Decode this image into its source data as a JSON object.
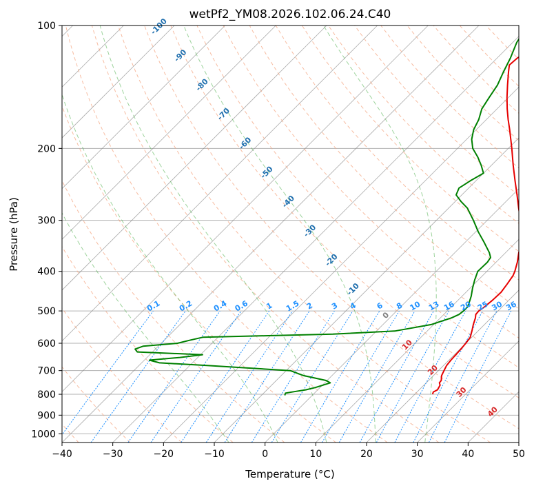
{
  "chart_data": {
    "type": "line",
    "kind": "skew-t log-p",
    "title": "wetPf2_YM08.2026.102.06.24.C40",
    "xlabel": "Temperature (°C)",
    "ylabel": "Pressure (hPa)",
    "xlim": [
      -40,
      50
    ],
    "ylim": [
      1050,
      100
    ],
    "y_scale": "log",
    "grid": true,
    "x_ticks": [
      -40,
      -30,
      -20,
      -10,
      0,
      10,
      20,
      30,
      40,
      50
    ],
    "y_ticks": [
      100,
      200,
      300,
      400,
      500,
      600,
      700,
      800,
      900,
      1000
    ],
    "skew_label": "Temperature (°C)",
    "series": [
      {
        "color": "#e60000",
        "role": "temperature",
        "points": [
          [
            800,
            23.5
          ],
          [
            790,
            23.2
          ],
          [
            780,
            23.6
          ],
          [
            760,
            23.2
          ],
          [
            750,
            22.6
          ],
          [
            740,
            22.5
          ],
          [
            720,
            21.6
          ],
          [
            700,
            21.1
          ],
          [
            680,
            20.6
          ],
          [
            660,
            20.4
          ],
          [
            640,
            20.3
          ],
          [
            620,
            20.2
          ],
          [
            600,
            20.0
          ],
          [
            580,
            19.7
          ],
          [
            560,
            18.8
          ],
          [
            540,
            17.8
          ],
          [
            520,
            16.9
          ],
          [
            510,
            16.3
          ],
          [
            500,
            16.2
          ],
          [
            490,
            16.5
          ],
          [
            470,
            16.8
          ],
          [
            450,
            16.9
          ],
          [
            430,
            16.5
          ],
          [
            410,
            16.0
          ],
          [
            400,
            15.5
          ],
          [
            380,
            14.2
          ],
          [
            360,
            12.6
          ],
          [
            340,
            11.2
          ],
          [
            320,
            9.1
          ],
          [
            300,
            6.6
          ],
          [
            280,
            3.8
          ],
          [
            260,
            0.9
          ],
          [
            240,
            -2.3
          ],
          [
            220,
            -5.7
          ],
          [
            200,
            -9.3
          ],
          [
            190,
            -11.3
          ],
          [
            180,
            -13.4
          ],
          [
            170,
            -15.7
          ],
          [
            160,
            -18.0
          ],
          [
            150,
            -20.3
          ],
          [
            140,
            -22.6
          ],
          [
            130,
            -25.0
          ],
          [
            125,
            -26.2
          ],
          [
            120,
            -26.0
          ],
          [
            115,
            -24.7
          ],
          [
            110,
            -23.6
          ],
          [
            105,
            -22.2
          ],
          [
            100,
            -20.6
          ]
        ]
      },
      {
        "color": "#008000",
        "role": "dewpoint",
        "points": [
          [
            805,
            -5.4
          ],
          [
            795,
            -5.7
          ],
          [
            790,
            -4.7
          ],
          [
            780,
            -2.3
          ],
          [
            770,
            -0.9
          ],
          [
            760,
            0.1
          ],
          [
            750,
            1.1
          ],
          [
            740,
            -0.2
          ],
          [
            720,
            -5.6
          ],
          [
            700,
            -9.2
          ],
          [
            690,
            -17.8
          ],
          [
            680,
            -26.6
          ],
          [
            670,
            -36.5
          ],
          [
            660,
            -39.0
          ],
          [
            650,
            -33.5
          ],
          [
            640,
            -29.6
          ],
          [
            630,
            -43.0
          ],
          [
            620,
            -44.0
          ],
          [
            610,
            -43.0
          ],
          [
            600,
            -36.8
          ],
          [
            590,
            -35.0
          ],
          [
            580,
            -33.0
          ],
          [
            575,
            -21.0
          ],
          [
            570,
            -8.0
          ],
          [
            560,
            3.6
          ],
          [
            540,
            9.5
          ],
          [
            520,
            12.2
          ],
          [
            510,
            13.0
          ],
          [
            500,
            13.2
          ],
          [
            490,
            13.2
          ],
          [
            480,
            12.8
          ],
          [
            460,
            11.8
          ],
          [
            440,
            10.5
          ],
          [
            420,
            9.3
          ],
          [
            400,
            8.2
          ],
          [
            380,
            8.3
          ],
          [
            370,
            8.0
          ],
          [
            360,
            6.8
          ],
          [
            340,
            3.8
          ],
          [
            320,
            0.5
          ],
          [
            300,
            -2.7
          ],
          [
            280,
            -6.3
          ],
          [
            270,
            -8.8
          ],
          [
            260,
            -11.1
          ],
          [
            250,
            -11.9
          ],
          [
            240,
            -11.1
          ],
          [
            230,
            -10.0
          ],
          [
            220,
            -12.0
          ],
          [
            210,
            -14.3
          ],
          [
            200,
            -17.0
          ],
          [
            190,
            -19.0
          ],
          [
            180,
            -20.5
          ],
          [
            170,
            -21.5
          ],
          [
            160,
            -23.0
          ],
          [
            150,
            -23.8
          ],
          [
            140,
            -24.6
          ],
          [
            130,
            -26.0
          ],
          [
            120,
            -27.4
          ],
          [
            110,
            -29.2
          ],
          [
            105,
            -29.8
          ],
          [
            100,
            -29.3
          ]
        ]
      }
    ],
    "background_lines": {
      "dry_adiabat_color": "#f4a582",
      "moist_adiabat_color": "#4daf4a",
      "mixing_ratio_color": "#1e90ff",
      "isotherm_color": "#888888",
      "dry_adiabat_temps_c": [
        -40,
        -30,
        -20,
        -10,
        0,
        10,
        20,
        30,
        40,
        50,
        60,
        70,
        80,
        90,
        100,
        110,
        120,
        130,
        140,
        150,
        160,
        170,
        180
      ],
      "moist_adiabat_temps_c": [
        -10,
        0,
        10,
        20,
        30
      ],
      "mixing_ratio_values": [
        0.1,
        0.2,
        0.4,
        0.6,
        1,
        1.5,
        2,
        3,
        4,
        6,
        8,
        10,
        13,
        16,
        20,
        25,
        30,
        36
      ],
      "mixing_ratio_labels": [
        "0.1",
        "0.2",
        "0.4",
        "0.6",
        "1",
        "1.5",
        "2",
        "3",
        "4",
        "6",
        "8",
        "10",
        "13",
        "16",
        "20",
        "25",
        "30",
        "36"
      ]
    },
    "isotherm_labels": [
      {
        "text": "-100",
        "value": -100,
        "color": "#1f6fae"
      },
      {
        "text": "-90",
        "value": -90,
        "color": "#1f6fae"
      },
      {
        "text": "-80",
        "value": -80,
        "color": "#1f6fae"
      },
      {
        "text": "-70",
        "value": -70,
        "color": "#1f6fae"
      },
      {
        "text": "-60",
        "value": -60,
        "color": "#1f6fae"
      },
      {
        "text": "-50",
        "value": -50,
        "color": "#1f6fae"
      },
      {
        "text": "-40",
        "value": -40,
        "color": "#1f6fae"
      },
      {
        "text": "-30",
        "value": -30,
        "color": "#1f6fae"
      },
      {
        "text": "-20",
        "value": -20,
        "color": "#1f6fae"
      },
      {
        "text": "-10",
        "value": -10,
        "color": "#1f6fae"
      },
      {
        "text": "0",
        "value": 0,
        "color": "#808080"
      },
      {
        "text": "10",
        "value": 10,
        "color": "#d62728"
      },
      {
        "text": "20",
        "value": 20,
        "color": "#d62728"
      },
      {
        "text": "30",
        "value": 30,
        "color": "#d62728"
      },
      {
        "text": "40",
        "value": 40,
        "color": "#d62728"
      }
    ]
  }
}
